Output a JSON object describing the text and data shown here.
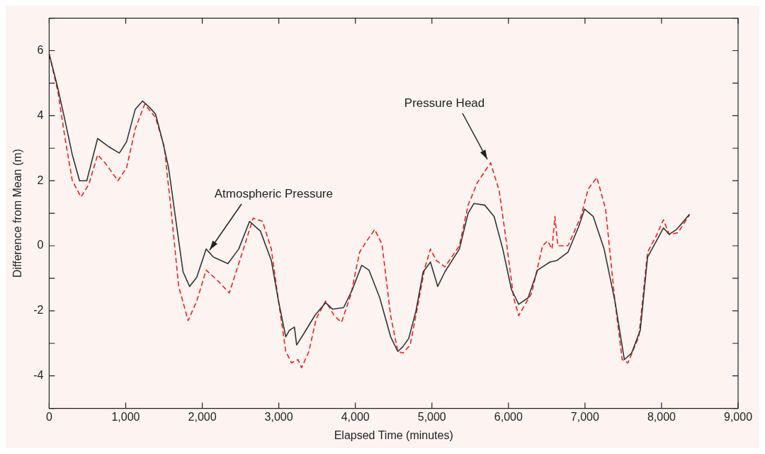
{
  "chart_data": {
    "type": "line",
    "xlabel": "Elapsed Time (minutes)",
    "ylabel": "Difference from Mean (m)",
    "xlim": [
      0,
      9000
    ],
    "xticks": [
      {
        "value": 0,
        "label": "0"
      },
      {
        "value": 1000,
        "label": "1,000"
      },
      {
        "value": 2000,
        "label": "2,000"
      },
      {
        "value": 3000,
        "label": "3,000"
      },
      {
        "value": 4000,
        "label": "4,000"
      },
      {
        "value": 5000,
        "label": "5,000"
      },
      {
        "value": 6000,
        "label": "6,000"
      },
      {
        "value": 7000,
        "label": "7,000"
      },
      {
        "value": 8000,
        "label": "8,000"
      },
      {
        "value": 9000,
        "label": "9,000"
      }
    ],
    "ylim": [
      -5,
      7
    ],
    "yticks": [
      {
        "value": -5,
        "label": null
      },
      -4,
      {
        "value": -3,
        "label": null
      },
      -2,
      {
        "value": -1,
        "label": null
      },
      0,
      {
        "value": 1,
        "label": null
      },
      2,
      {
        "value": 3,
        "label": null
      },
      4,
      {
        "value": 5,
        "label": null
      },
      6,
      {
        "value": 7,
        "label": null
      }
    ],
    "grid": false,
    "legend": false,
    "marker": "none",
    "series": [
      {
        "color": "#333333",
        "line_style": "solid",
        "x": [
          0,
          113,
          208,
          302,
          397,
          491,
          633,
          775,
          917,
          1011,
          1125,
          1219,
          1314,
          1389,
          1484,
          1560,
          1654,
          1749,
          1834,
          1928,
          2051,
          2146,
          2335,
          2476,
          2618,
          2760,
          2902,
          2996,
          3091,
          3138,
          3204,
          3233,
          3327,
          3469,
          3611,
          3705,
          3847,
          3960,
          4083,
          4178,
          4319,
          4461,
          4555,
          4621,
          4697,
          4792,
          4886,
          4981,
          5076,
          5170,
          5359,
          5473,
          5548,
          5690,
          5813,
          5926,
          6040,
          6134,
          6257,
          6380,
          6541,
          6635,
          6777,
          6919,
          6994,
          7108,
          7250,
          7391,
          7514,
          7609,
          7722,
          7817,
          7911,
          8025,
          8100,
          8195,
          8270,
          8365
        ],
        "values": [
          5.9,
          4.85,
          3.84,
          2.8,
          2.0,
          2.0,
          3.3,
          3.05,
          2.85,
          3.2,
          4.2,
          4.45,
          4.25,
          4.05,
          3.2,
          2.4,
          0.8,
          -0.8,
          -1.25,
          -0.97,
          -0.1,
          -0.35,
          -0.55,
          -0.1,
          0.75,
          0.45,
          -0.45,
          -1.7,
          -2.8,
          -2.6,
          -2.5,
          -3.05,
          -2.7,
          -2.15,
          -1.75,
          -1.95,
          -1.9,
          -1.35,
          -0.6,
          -0.75,
          -1.6,
          -2.8,
          -3.25,
          -3.1,
          -2.85,
          -2.0,
          -0.8,
          -0.5,
          -1.25,
          -0.8,
          -0.1,
          1.0,
          1.3,
          1.25,
          0.9,
          -0.1,
          -1.35,
          -1.8,
          -1.6,
          -0.75,
          -0.5,
          -0.45,
          -0.2,
          0.6,
          1.13,
          0.9,
          -0.1,
          -1.7,
          -3.5,
          -3.3,
          -2.6,
          -0.35,
          0.05,
          0.55,
          0.35,
          0.5,
          0.7,
          0.97
        ]
      },
      {
        "color": "#e8231e",
        "line_style": "dashed",
        "x": [
          0,
          113,
          208,
          302,
          416,
          520,
          633,
          747,
          898,
          1011,
          1125,
          1248,
          1389,
          1503,
          1597,
          1692,
          1815,
          1928,
          2051,
          2193,
          2353,
          2504,
          2665,
          2788,
          2902,
          2996,
          3091,
          3166,
          3251,
          3298,
          3393,
          3488,
          3611,
          3724,
          3819,
          3942,
          4055,
          4149,
          4253,
          4348,
          4461,
          4555,
          4621,
          4716,
          4811,
          4905,
          4981,
          5057,
          5170,
          5359,
          5473,
          5595,
          5766,
          5879,
          5974,
          6068,
          6134,
          6304,
          6446,
          6512,
          6569,
          6607,
          6645,
          6777,
          6947,
          7042,
          7155,
          7269,
          7391,
          7486,
          7561,
          7703,
          7817,
          7930,
          8025,
          8100,
          8214,
          8365
        ],
        "values": [
          5.9,
          4.75,
          3.3,
          2.0,
          1.5,
          1.9,
          2.8,
          2.5,
          2.0,
          2.4,
          3.6,
          4.35,
          3.95,
          3.05,
          1.0,
          -1.25,
          -2.3,
          -1.7,
          -0.75,
          -1.05,
          -1.45,
          -0.35,
          0.85,
          0.75,
          -0.1,
          -1.7,
          -3.25,
          -3.6,
          -3.5,
          -3.75,
          -3.25,
          -2.25,
          -1.7,
          -2.15,
          -2.35,
          -1.5,
          -0.2,
          0.15,
          0.5,
          0.05,
          -2.15,
          -3.25,
          -3.3,
          -3.05,
          -1.9,
          -0.7,
          -0.1,
          -0.45,
          -0.65,
          0.0,
          1.25,
          1.95,
          2.55,
          1.7,
          0.1,
          -1.6,
          -2.15,
          -1.45,
          0.0,
          0.15,
          -0.1,
          0.9,
          0.0,
          0.0,
          0.9,
          1.75,
          2.1,
          1.13,
          -1.7,
          -3.5,
          -3.6,
          -2.8,
          -0.2,
          0.3,
          0.8,
          0.35,
          0.4,
          0.95
        ]
      }
    ],
    "annotations": [
      {
        "text": "Atmospheric Pressure",
        "x": 2100,
        "y": -0.2
      },
      {
        "text": "Pressure Head",
        "x": 5720,
        "y": 2.6
      }
    ]
  }
}
